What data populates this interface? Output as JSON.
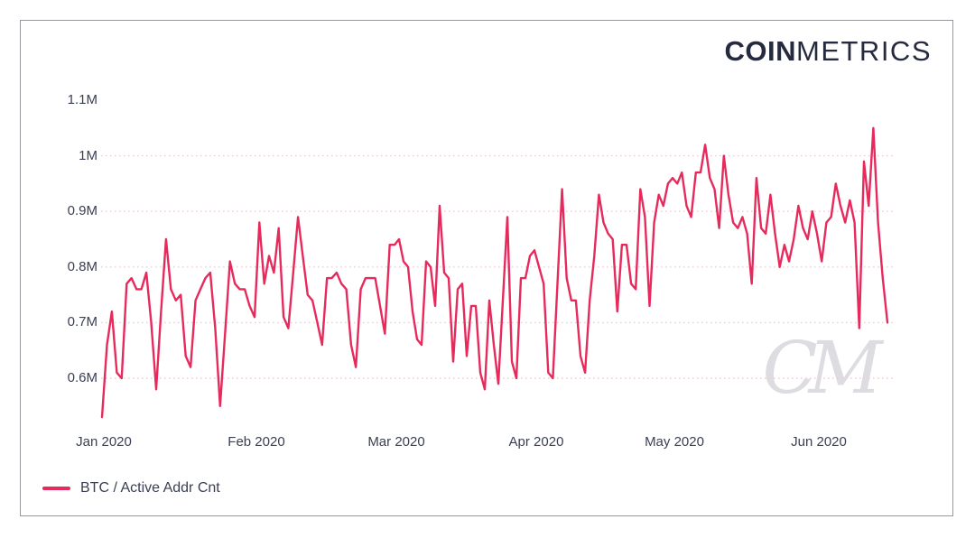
{
  "brand": {
    "name_bold": "COIN",
    "name_light": "METRICS"
  },
  "watermark_text": "CM",
  "legend": [
    {
      "label": "BTC / Active Addr Cnt",
      "color": "#e72a5c"
    }
  ],
  "colors": {
    "line": "#e72a5c",
    "grid": "#f0ccd7",
    "axis_text": "#3a3f54",
    "logo_text": "#262a3e",
    "card_border": "#97999e",
    "watermark": "#dcdce1",
    "background": "#ffffff"
  },
  "chart_data": {
    "type": "line",
    "title": "",
    "xlabel": "",
    "ylabel": "",
    "grid": "horizontal-dotted",
    "legend_position": "bottom-left",
    "unit": "M addresses",
    "ylim": [
      0.52,
      1.12
    ],
    "y_ticks": [
      {
        "label": "1.1M",
        "value": 1.1,
        "grid": false
      },
      {
        "label": "1M",
        "value": 1.0,
        "grid": true
      },
      {
        "label": "0.9M",
        "value": 0.9,
        "grid": true
      },
      {
        "label": "0.8M",
        "value": 0.8,
        "grid": true
      },
      {
        "label": "0.7M",
        "value": 0.7,
        "grid": true
      },
      {
        "label": "0.6M",
        "value": 0.6,
        "grid": true
      }
    ],
    "x_ticks": [
      {
        "label": "Jan 2020"
      },
      {
        "label": "Feb 2020"
      },
      {
        "label": "Mar 2020"
      },
      {
        "label": "Apr 2020"
      },
      {
        "label": "May 2020"
      },
      {
        "label": "Jun 2020"
      }
    ],
    "series": [
      {
        "name": "BTC / Active Addr Cnt",
        "color": "#e72a5c",
        "frequency": "daily",
        "start_date": "2020-01-01",
        "values_unit": "millions",
        "values_m": [
          0.53,
          0.66,
          0.72,
          0.61,
          0.6,
          0.77,
          0.78,
          0.76,
          0.76,
          0.79,
          0.7,
          0.58,
          0.72,
          0.85,
          0.76,
          0.74,
          0.75,
          0.64,
          0.62,
          0.74,
          0.76,
          0.78,
          0.79,
          0.69,
          0.55,
          0.68,
          0.81,
          0.77,
          0.76,
          0.76,
          0.73,
          0.71,
          0.88,
          0.77,
          0.82,
          0.79,
          0.87,
          0.71,
          0.69,
          0.79,
          0.89,
          0.82,
          0.75,
          0.74,
          0.7,
          0.66,
          0.78,
          0.78,
          0.79,
          0.77,
          0.76,
          0.66,
          0.62,
          0.76,
          0.78,
          0.78,
          0.78,
          0.73,
          0.68,
          0.84,
          0.84,
          0.85,
          0.81,
          0.8,
          0.72,
          0.67,
          0.66,
          0.81,
          0.8,
          0.73,
          0.91,
          0.79,
          0.78,
          0.63,
          0.76,
          0.77,
          0.64,
          0.73,
          0.73,
          0.61,
          0.58,
          0.74,
          0.66,
          0.59,
          0.74,
          0.89,
          0.63,
          0.6,
          0.78,
          0.78,
          0.82,
          0.83,
          0.8,
          0.77,
          0.61,
          0.6,
          0.77,
          0.94,
          0.78,
          0.74,
          0.74,
          0.64,
          0.61,
          0.74,
          0.82,
          0.93,
          0.88,
          0.86,
          0.85,
          0.72,
          0.84,
          0.84,
          0.77,
          0.76,
          0.94,
          0.89,
          0.73,
          0.88,
          0.93,
          0.91,
          0.95,
          0.96,
          0.95,
          0.97,
          0.91,
          0.89,
          0.97,
          0.97,
          1.02,
          0.96,
          0.94,
          0.87,
          1.0,
          0.93,
          0.88,
          0.87,
          0.89,
          0.86,
          0.77,
          0.96,
          0.87,
          0.86,
          0.93,
          0.86,
          0.8,
          0.84,
          0.81,
          0.85,
          0.91,
          0.87,
          0.85,
          0.9,
          0.86,
          0.81,
          0.88,
          0.89,
          0.95,
          0.91,
          0.88,
          0.92,
          0.88,
          0.69,
          0.99,
          0.91,
          1.05,
          0.88,
          0.78,
          0.7
        ]
      }
    ]
  }
}
